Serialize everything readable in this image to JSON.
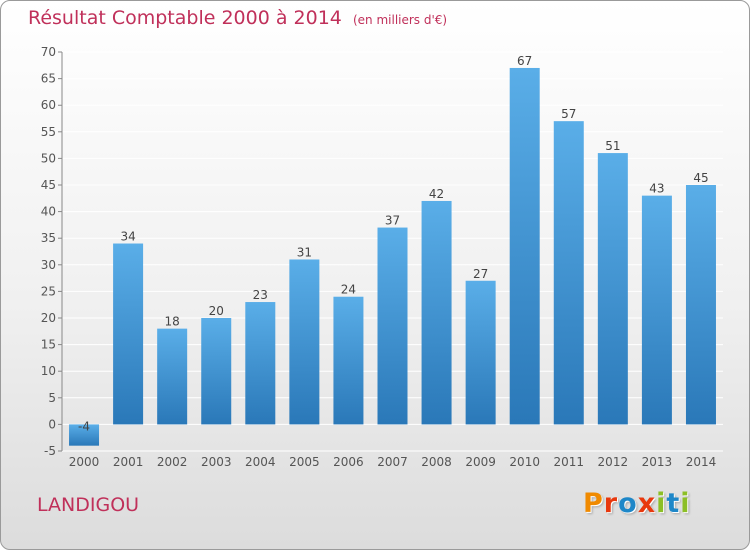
{
  "header": {
    "title": "Résultat Comptable 2000 à 2014",
    "subtitle": "(en milliers d'€)"
  },
  "footer": {
    "commune": "LANDIGOU",
    "logo_text": "Proxiti",
    "logo_colors": [
      "#f08a00",
      "#e8380d",
      "#1e87c8",
      "#e8380d",
      "#8cbf26",
      "#1e87c8",
      "#8cbf26"
    ]
  },
  "colors": {
    "title": "#c0305a",
    "bar_top": "#5aaee8",
    "bar_bottom": "#2a78b8",
    "grid": "#ffffff"
  },
  "chart_data": {
    "type": "bar",
    "categories": [
      "2000",
      "2001",
      "2002",
      "2003",
      "2004",
      "2005",
      "2006",
      "2007",
      "2008",
      "2009",
      "2010",
      "2011",
      "2012",
      "2013",
      "2014"
    ],
    "values": [
      -4,
      34,
      18,
      20,
      23,
      31,
      24,
      37,
      42,
      27,
      67,
      57,
      51,
      43,
      45
    ],
    "value_labels": [
      "-4",
      "34",
      "18",
      "20",
      "23",
      "31",
      "24",
      "37",
      "42",
      "27",
      "67",
      "57",
      "51",
      "43",
      "45"
    ],
    "ylim": [
      -5,
      70
    ],
    "yticks": [
      -5,
      0,
      5,
      10,
      15,
      20,
      25,
      30,
      35,
      40,
      45,
      50,
      55,
      60,
      65,
      70
    ],
    "ytick_labels": [
      "-5",
      "0",
      "5",
      "10",
      "15",
      "20",
      "25",
      "30",
      "35",
      "40",
      "45",
      "50",
      "55",
      "60",
      "65",
      "70"
    ],
    "grid": true,
    "title": "Résultat Comptable 2000 à 2014",
    "xlabel": "",
    "ylabel": ""
  }
}
